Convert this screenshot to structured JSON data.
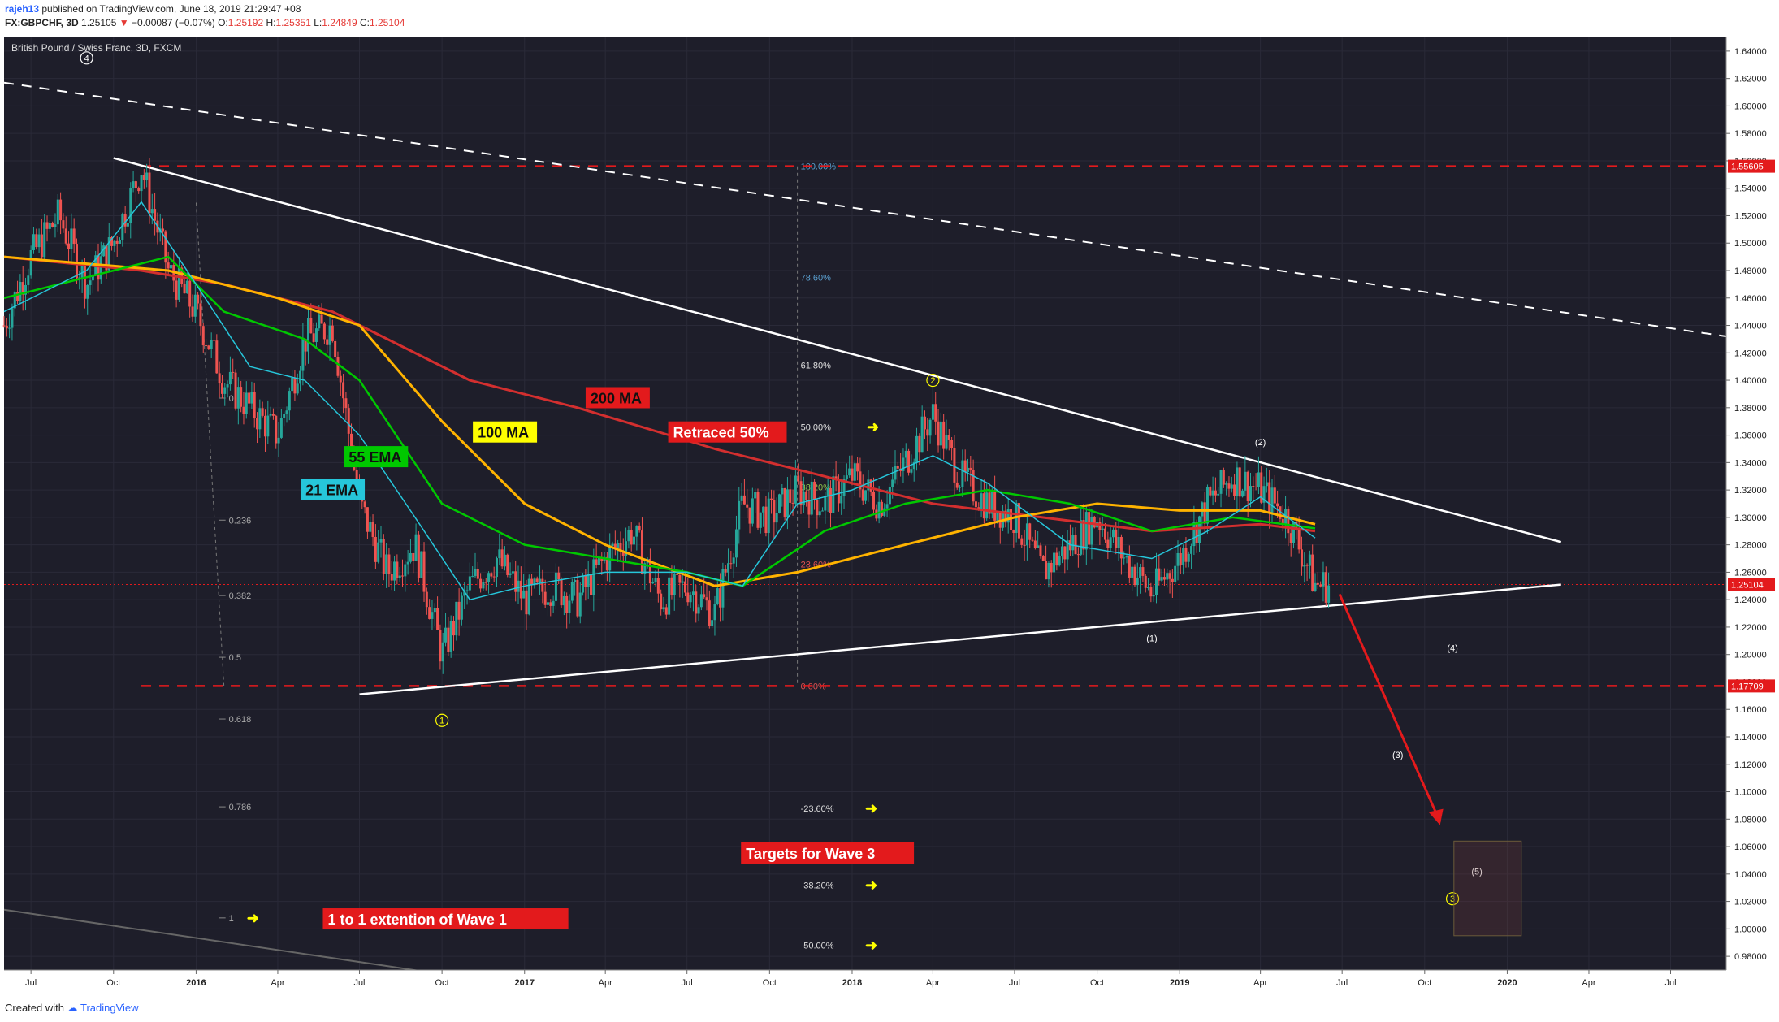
{
  "header": {
    "user": "rajeh13",
    "published": "published on TradingView.com, June 18, 2019 21:29:47 +08",
    "ticker": "FX:GBPCHF, 3D",
    "last": "1.25105",
    "change_arrow": "▼",
    "change": "−0.00087 (−0.07%)",
    "ohlc_o_label": "O:",
    "ohlc_o": "1.25192",
    "ohlc_h_label": "H:",
    "ohlc_h": "1.25351",
    "ohlc_l_label": "L:",
    "ohlc_l": "1.24849",
    "ohlc_c_label": "C:",
    "ohlc_c": "1.25104"
  },
  "footer": {
    "created_with": "Created with",
    "brand": "TradingView"
  },
  "chart_data": {
    "type": "candlestick",
    "title": "British Pound / Swiss Franc, 3D, FXCM",
    "colors": {
      "background": "#1e1e2a",
      "up": "#26a69a",
      "down": "#ef5350",
      "ema21": "#26c6da",
      "ema55": "#00c800",
      "ma100": "#ffb300",
      "ma200": "#d32f2f",
      "annotation_red": "#e31a1c",
      "annotation_yellow": "#ffff00"
    },
    "x_start": "2015-06",
    "x_end": "2020-09",
    "ylim": [
      0.97,
      1.65
    ],
    "y_ticks": [
      "1.64000",
      "1.62000",
      "1.60000",
      "1.58000",
      "1.56000",
      "1.54000",
      "1.52000",
      "1.50000",
      "1.48000",
      "1.46000",
      "1.44000",
      "1.42000",
      "1.40000",
      "1.38000",
      "1.36000",
      "1.34000",
      "1.32000",
      "1.30000",
      "1.28000",
      "1.26000",
      "1.24000",
      "1.22000",
      "1.20000",
      "1.18000",
      "1.16000",
      "1.14000",
      "1.12000",
      "1.10000",
      "1.08000",
      "1.06000",
      "1.04000",
      "1.02000",
      "1.00000",
      "0.98000"
    ],
    "x_ticks": [
      {
        "label": "Jul",
        "date": "2015-07"
      },
      {
        "label": "Oct",
        "date": "2015-10"
      },
      {
        "label": "2016",
        "date": "2016-01"
      },
      {
        "label": "Apr",
        "date": "2016-04"
      },
      {
        "label": "Jul",
        "date": "2016-07"
      },
      {
        "label": "Oct",
        "date": "2016-10"
      },
      {
        "label": "2017",
        "date": "2017-01"
      },
      {
        "label": "Apr",
        "date": "2017-04"
      },
      {
        "label": "Jul",
        "date": "2017-07"
      },
      {
        "label": "Oct",
        "date": "2017-10"
      },
      {
        "label": "2018",
        "date": "2018-01"
      },
      {
        "label": "Apr",
        "date": "2018-04"
      },
      {
        "label": "Jul",
        "date": "2018-07"
      },
      {
        "label": "Oct",
        "date": "2018-10"
      },
      {
        "label": "2019",
        "date": "2019-01"
      },
      {
        "label": "Apr",
        "date": "2019-04"
      },
      {
        "label": "Jul",
        "date": "2019-07"
      },
      {
        "label": "Oct",
        "date": "2019-10"
      },
      {
        "label": "2020",
        "date": "2020-01"
      },
      {
        "label": "Apr",
        "date": "2020-04"
      },
      {
        "label": "Jul",
        "date": "2020-07"
      }
    ],
    "price_path": [
      {
        "date": "2015-06",
        "close": 1.44
      },
      {
        "date": "2015-07",
        "close": 1.49
      },
      {
        "date": "2015-08",
        "close": 1.52
      },
      {
        "date": "2015-09",
        "close": 1.47
      },
      {
        "date": "2015-10",
        "close": 1.5
      },
      {
        "date": "2015-11",
        "close": 1.555
      },
      {
        "date": "2015-12",
        "close": 1.48
      },
      {
        "date": "2016-01",
        "close": 1.45
      },
      {
        "date": "2016-02",
        "close": 1.4
      },
      {
        "date": "2016-03",
        "close": 1.38
      },
      {
        "date": "2016-04",
        "close": 1.36
      },
      {
        "date": "2016-05",
        "close": 1.43
      },
      {
        "date": "2016-06",
        "close": 1.44
      },
      {
        "date": "2016-07",
        "close": 1.31
      },
      {
        "date": "2016-08",
        "close": 1.26
      },
      {
        "date": "2016-09",
        "close": 1.28
      },
      {
        "date": "2016-10",
        "close": 1.2
      },
      {
        "date": "2016-11",
        "close": 1.25
      },
      {
        "date": "2016-12",
        "close": 1.27
      },
      {
        "date": "2017-01",
        "close": 1.24
      },
      {
        "date": "2017-02",
        "close": 1.25
      },
      {
        "date": "2017-03",
        "close": 1.24
      },
      {
        "date": "2017-04",
        "close": 1.27
      },
      {
        "date": "2017-05",
        "close": 1.29
      },
      {
        "date": "2017-06",
        "close": 1.24
      },
      {
        "date": "2017-07",
        "close": 1.25
      },
      {
        "date": "2017-08",
        "close": 1.23
      },
      {
        "date": "2017-09",
        "close": 1.31
      },
      {
        "date": "2017-10",
        "close": 1.3
      },
      {
        "date": "2017-11",
        "close": 1.32
      },
      {
        "date": "2017-12",
        "close": 1.31
      },
      {
        "date": "2018-01",
        "close": 1.33
      },
      {
        "date": "2018-02",
        "close": 1.31
      },
      {
        "date": "2018-03",
        "close": 1.34
      },
      {
        "date": "2018-04",
        "close": 1.375
      },
      {
        "date": "2018-05",
        "close": 1.33
      },
      {
        "date": "2018-06",
        "close": 1.31
      },
      {
        "date": "2018-07",
        "close": 1.3
      },
      {
        "date": "2018-08",
        "close": 1.26
      },
      {
        "date": "2018-09",
        "close": 1.28
      },
      {
        "date": "2018-10",
        "close": 1.3
      },
      {
        "date": "2018-11",
        "close": 1.27
      },
      {
        "date": "2018-12",
        "close": 1.245
      },
      {
        "date": "2019-01",
        "close": 1.27
      },
      {
        "date": "2019-02",
        "close": 1.31
      },
      {
        "date": "2019-03",
        "close": 1.33
      },
      {
        "date": "2019-04",
        "close": 1.32
      },
      {
        "date": "2019-05",
        "close": 1.3
      },
      {
        "date": "2019-06",
        "close": 1.251
      }
    ],
    "moving_averages": {
      "ema21": [
        {
          "date": "2015-06",
          "v": 1.45
        },
        {
          "date": "2015-09",
          "v": 1.48
        },
        {
          "date": "2015-11",
          "v": 1.53
        },
        {
          "date": "2016-01",
          "v": 1.47
        },
        {
          "date": "2016-03",
          "v": 1.41
        },
        {
          "date": "2016-05",
          "v": 1.4
        },
        {
          "date": "2016-07",
          "v": 1.36
        },
        {
          "date": "2016-09",
          "v": 1.3
        },
        {
          "date": "2016-11",
          "v": 1.24
        },
        {
          "date": "2017-01",
          "v": 1.25
        },
        {
          "date": "2017-04",
          "v": 1.26
        },
        {
          "date": "2017-07",
          "v": 1.26
        },
        {
          "date": "2017-09",
          "v": 1.25
        },
        {
          "date": "2017-11",
          "v": 1.31
        },
        {
          "date": "2018-01",
          "v": 1.32
        },
        {
          "date": "2018-04",
          "v": 1.345
        },
        {
          "date": "2018-06",
          "v": 1.325
        },
        {
          "date": "2018-09",
          "v": 1.28
        },
        {
          "date": "2018-12",
          "v": 1.27
        },
        {
          "date": "2019-02",
          "v": 1.29
        },
        {
          "date": "2019-04",
          "v": 1.315
        },
        {
          "date": "2019-06",
          "v": 1.285
        }
      ],
      "ema55": [
        {
          "date": "2015-06",
          "v": 1.46
        },
        {
          "date": "2015-10",
          "v": 1.48
        },
        {
          "date": "2015-12",
          "v": 1.49
        },
        {
          "date": "2016-02",
          "v": 1.45
        },
        {
          "date": "2016-05",
          "v": 1.43
        },
        {
          "date": "2016-07",
          "v": 1.4
        },
        {
          "date": "2016-10",
          "v": 1.31
        },
        {
          "date": "2017-01",
          "v": 1.28
        },
        {
          "date": "2017-04",
          "v": 1.27
        },
        {
          "date": "2017-07",
          "v": 1.26
        },
        {
          "date": "2017-09",
          "v": 1.25
        },
        {
          "date": "2017-12",
          "v": 1.29
        },
        {
          "date": "2018-03",
          "v": 1.31
        },
        {
          "date": "2018-06",
          "v": 1.32
        },
        {
          "date": "2018-09",
          "v": 1.31
        },
        {
          "date": "2018-12",
          "v": 1.29
        },
        {
          "date": "2019-03",
          "v": 1.3
        },
        {
          "date": "2019-06",
          "v": 1.292
        }
      ],
      "ma100": [
        {
          "date": "2015-06",
          "v": 1.49
        },
        {
          "date": "2015-12",
          "v": 1.48
        },
        {
          "date": "2016-04",
          "v": 1.46
        },
        {
          "date": "2016-07",
          "v": 1.44
        },
        {
          "date": "2016-10",
          "v": 1.37
        },
        {
          "date": "2017-01",
          "v": 1.31
        },
        {
          "date": "2017-04",
          "v": 1.28
        },
        {
          "date": "2017-08",
          "v": 1.25
        },
        {
          "date": "2017-11",
          "v": 1.26
        },
        {
          "date": "2018-03",
          "v": 1.28
        },
        {
          "date": "2018-07",
          "v": 1.3
        },
        {
          "date": "2018-10",
          "v": 1.31
        },
        {
          "date": "2019-01",
          "v": 1.305
        },
        {
          "date": "2019-04",
          "v": 1.305
        },
        {
          "date": "2019-06",
          "v": 1.295
        }
      ],
      "ma200": [
        {
          "date": "2015-06",
          "v": 1.49
        },
        {
          "date": "2015-11",
          "v": 1.48
        },
        {
          "date": "2016-02",
          "v": 1.47
        },
        {
          "date": "2016-06",
          "v": 1.45
        },
        {
          "date": "2016-11",
          "v": 1.4
        },
        {
          "date": "2017-03",
          "v": 1.38
        },
        {
          "date": "2017-08",
          "v": 1.35
        },
        {
          "date": "2017-12",
          "v": 1.33
        },
        {
          "date": "2018-04",
          "v": 1.31
        },
        {
          "date": "2018-08",
          "v": 1.3
        },
        {
          "date": "2018-12",
          "v": 1.29
        },
        {
          "date": "2019-04",
          "v": 1.295
        },
        {
          "date": "2019-06",
          "v": 1.29
        }
      ]
    },
    "price_levels": [
      {
        "value": 1.55605,
        "label": "1.55605"
      },
      {
        "value": 1.17709,
        "label": "1.17709"
      },
      {
        "value": 1.25104,
        "label": "1.25104"
      }
    ],
    "fib_retracement": [
      {
        "label": "100.00%",
        "value": 1.556
      },
      {
        "label": "78.60%",
        "value": 1.475
      },
      {
        "label": "61.80%",
        "value": 1.411
      },
      {
        "label": "50.00%",
        "value": 1.366
      },
      {
        "label": "38.20%",
        "value": 1.322
      },
      {
        "label": "23.60%",
        "value": 1.266
      },
      {
        "label": "0.00%",
        "value": 1.177
      },
      {
        "label": "-23.60%",
        "value": 1.088
      },
      {
        "label": "-38.20%",
        "value": 1.032
      },
      {
        "label": "-50.00%",
        "value": 0.988
      }
    ],
    "fib_extension": [
      {
        "label": "0",
        "value": 1.387
      },
      {
        "label": "0.236",
        "value": 1.298
      },
      {
        "label": "0.382",
        "value": 1.243
      },
      {
        "label": "0.5",
        "value": 1.198
      },
      {
        "label": "0.618",
        "value": 1.153
      },
      {
        "label": "0.786",
        "value": 1.089
      },
      {
        "label": "1",
        "value": 1.008
      }
    ],
    "labels": {
      "ma200": "200 MA",
      "ma100": "100 MA",
      "ema55": "55 EMA",
      "ema21": "21 EMA",
      "retraced": "Retraced 50%",
      "targets": "Targets for Wave 3",
      "extension": "1 to 1 extention of Wave 1"
    },
    "wave_labels": [
      {
        "label": "4",
        "date": "2015-09",
        "value": 1.635,
        "circled": true,
        "color": "white"
      },
      {
        "label": "1",
        "date": "2016-10",
        "value": 1.152,
        "circled": true,
        "color": "yellow"
      },
      {
        "label": "2",
        "date": "2018-04",
        "value": 1.4,
        "circled": true,
        "color": "yellow"
      },
      {
        "label": "(1)",
        "date": "2018-12",
        "value": 1.212,
        "circled": false,
        "color": "white"
      },
      {
        "label": "(2)",
        "date": "2019-04",
        "value": 1.355,
        "circled": false,
        "color": "white"
      },
      {
        "label": "(3)",
        "date": "2019-09",
        "value": 1.127,
        "circled": false,
        "color": "white"
      },
      {
        "label": "(4)",
        "date": "2019-11",
        "value": 1.205,
        "circled": false,
        "color": "white"
      },
      {
        "label": "(5)",
        "date": "2019-11",
        "value": 1.042,
        "circled": false,
        "color": "white"
      },
      {
        "label": "3",
        "date": "2019-11",
        "value": 1.022,
        "circled": true,
        "color": "yellow"
      }
    ]
  }
}
